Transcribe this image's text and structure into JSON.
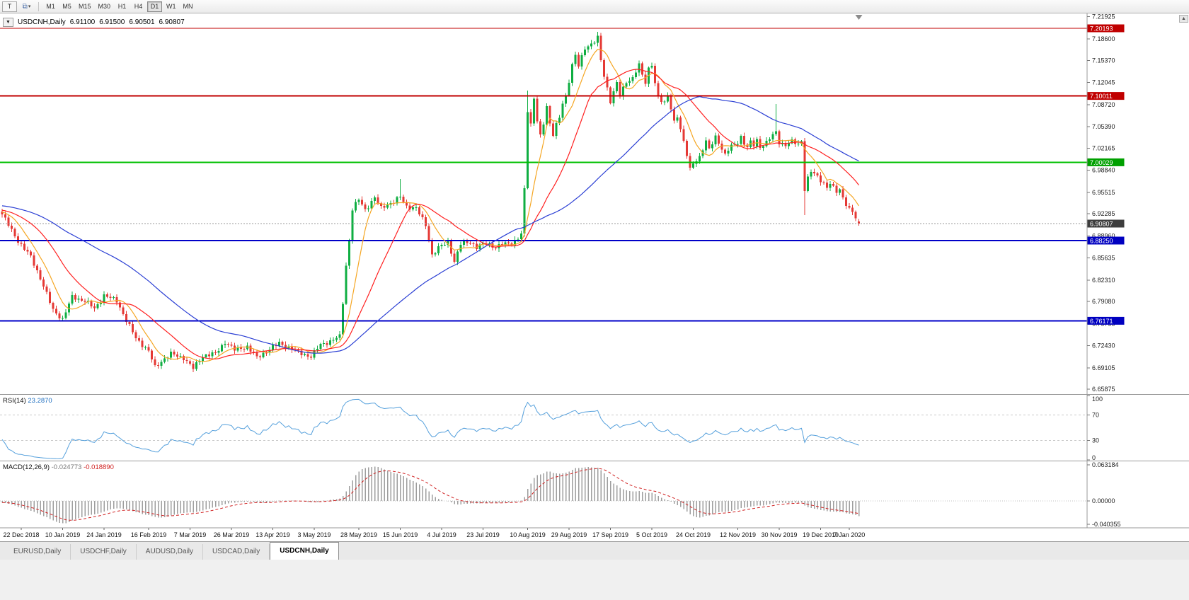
{
  "icons": {
    "collapse": "▼",
    "objects": "⧉",
    "caret": "▾",
    "scroll_up": "▲"
  },
  "toolbar": {
    "t_button_label": "T",
    "timeframes": [
      "M1",
      "M5",
      "M15",
      "M30",
      "H1",
      "H4",
      "D1",
      "W1",
      "MN"
    ],
    "active_timeframe": "D1"
  },
  "chart_header": {
    "symbol": "USDCNH,Daily",
    "open": "6.91100",
    "high": "6.91500",
    "low": "6.90501",
    "close": "6.90807"
  },
  "tabs": {
    "items": [
      "EURUSD,Daily",
      "USDCHF,Daily",
      "AUDUSD,Daily",
      "USDCAD,Daily",
      "USDCNH,Daily"
    ],
    "active_index": 4
  },
  "chart_data": {
    "type": "candlestick",
    "symbol": "USDCNH",
    "timeframe": "Daily",
    "candle_count": 270,
    "ylim": [
      6.6525,
      7.2243
    ],
    "up_color": "#0fae42",
    "down_color": "#e53935",
    "price_ticks": [
      "7.21925",
      "7.18600",
      "7.15370",
      "7.12045",
      "7.08720",
      "7.05390",
      "7.02165",
      "6.98840",
      "6.95515",
      "6.92285",
      "6.88960",
      "6.85635",
      "6.82310",
      "6.79080",
      "6.75755",
      "6.72430",
      "6.69105",
      "6.65875"
    ],
    "badges": [
      {
        "text": "7.20193",
        "bg": "#c00000",
        "name": "resistance-price-tag"
      },
      {
        "text": "7.10011",
        "bg": "#c00000",
        "name": "resistance-price-tag"
      },
      {
        "text": "7.00029",
        "bg": "#00a000",
        "name": "pivot-price-tag"
      },
      {
        "text": "6.90807",
        "bg": "#3d3d3d",
        "name": "current-price-tag"
      },
      {
        "text": "6.88250",
        "bg": "#0000c0",
        "name": "support-price-tag"
      },
      {
        "text": "6.76171",
        "bg": "#0000c0",
        "name": "support-price-tag"
      }
    ],
    "levels": [
      {
        "price": 7.20193,
        "color": "#c00000",
        "width": 1
      },
      {
        "price": 7.10011,
        "color": "#c00000",
        "width": 2
      },
      {
        "price": 7.00029,
        "color": "#00c000",
        "width": 2
      },
      {
        "price": 6.8825,
        "color": "#0000c8",
        "width": 2
      },
      {
        "price": 6.76171,
        "color": "#0000c8",
        "width": 2
      }
    ],
    "current_price": 6.90807,
    "moving_averages": [
      {
        "period": 8,
        "color": "#f5a623",
        "name": "fast-ma"
      },
      {
        "period": 21,
        "color": "#ff2020",
        "name": "medium-ma"
      },
      {
        "period": 55,
        "color": "#2b3fd4",
        "name": "slow-ma"
      }
    ],
    "price_path": [
      [
        0,
        6.922
      ],
      [
        2,
        6.906
      ],
      [
        5,
        6.882
      ],
      [
        9,
        6.858
      ],
      [
        12,
        6.826
      ],
      [
        16,
        6.778
      ],
      [
        19,
        6.764
      ],
      [
        22,
        6.798
      ],
      [
        26,
        6.792
      ],
      [
        29,
        6.78
      ],
      [
        32,
        6.8
      ],
      [
        36,
        6.792
      ],
      [
        39,
        6.762
      ],
      [
        42,
        6.736
      ],
      [
        46,
        6.716
      ],
      [
        48,
        6.692
      ],
      [
        50,
        6.701
      ],
      [
        53,
        6.712
      ],
      [
        57,
        6.706
      ],
      [
        60,
        6.69
      ],
      [
        63,
        6.709
      ],
      [
        67,
        6.712
      ],
      [
        70,
        6.73
      ],
      [
        73,
        6.718
      ],
      [
        77,
        6.723
      ],
      [
        80,
        6.706
      ],
      [
        83,
        6.716
      ],
      [
        87,
        6.728
      ],
      [
        90,
        6.722
      ],
      [
        93,
        6.714
      ],
      [
        97,
        6.708
      ],
      [
        100,
        6.726
      ],
      [
        103,
        6.731
      ],
      [
        106,
        6.738
      ],
      [
        107,
        6.79
      ],
      [
        108,
        6.845
      ],
      [
        109,
        6.882
      ],
      [
        110,
        6.93
      ],
      [
        112,
        6.944
      ],
      [
        114,
        6.929
      ],
      [
        117,
        6.947
      ],
      [
        119,
        6.931
      ],
      [
        121,
        6.937
      ],
      [
        123,
        6.941
      ],
      [
        125,
        6.948
      ],
      [
        127,
        6.934
      ],
      [
        130,
        6.931
      ],
      [
        133,
        6.906
      ],
      [
        135,
        6.861
      ],
      [
        137,
        6.871
      ],
      [
        140,
        6.881
      ],
      [
        142,
        6.851
      ],
      [
        144,
        6.877
      ],
      [
        147,
        6.881
      ],
      [
        149,
        6.872
      ],
      [
        152,
        6.879
      ],
      [
        155,
        6.872
      ],
      [
        157,
        6.877
      ],
      [
        160,
        6.879
      ],
      [
        162,
        6.886
      ],
      [
        163,
        6.892
      ],
      [
        164,
        6.958
      ],
      [
        165,
        7.078
      ],
      [
        166,
        7.058
      ],
      [
        167,
        7.098
      ],
      [
        168,
        7.064
      ],
      [
        169,
        7.039
      ],
      [
        170,
        7.058
      ],
      [
        171,
        7.083
      ],
      [
        172,
        7.058
      ],
      [
        173,
        7.044
      ],
      [
        174,
        7.058
      ],
      [
        175,
        7.068
      ],
      [
        176,
        7.088
      ],
      [
        177,
        7.098
      ],
      [
        178,
        7.122
      ],
      [
        179,
        7.148
      ],
      [
        180,
        7.163
      ],
      [
        181,
        7.147
      ],
      [
        182,
        7.158
      ],
      [
        183,
        7.17
      ],
      [
        185,
        7.178
      ],
      [
        187,
        7.19
      ],
      [
        188,
        7.154
      ],
      [
        189,
        7.129
      ],
      [
        190,
        7.109
      ],
      [
        191,
        7.091
      ],
      [
        192,
        7.108
      ],
      [
        193,
        7.121
      ],
      [
        194,
        7.102
      ],
      [
        195,
        7.111
      ],
      [
        196,
        7.119
      ],
      [
        198,
        7.127
      ],
      [
        199,
        7.139
      ],
      [
        200,
        7.149
      ],
      [
        201,
        7.131
      ],
      [
        202,
        7.119
      ],
      [
        203,
        7.139
      ],
      [
        204,
        7.147
      ],
      [
        205,
        7.121
      ],
      [
        206,
        7.099
      ],
      [
        208,
        7.089
      ],
      [
        209,
        7.099
      ],
      [
        210,
        7.081
      ],
      [
        211,
        7.061
      ],
      [
        212,
        7.071
      ],
      [
        213,
        7.051
      ],
      [
        214,
        7.031
      ],
      [
        215,
        7.011
      ],
      [
        216,
        6.989
      ],
      [
        217,
        6.999
      ],
      [
        219,
        7.009
      ],
      [
        220,
        7.021
      ],
      [
        221,
        7.031
      ],
      [
        222,
        7.019
      ],
      [
        223,
        7.029
      ],
      [
        224,
        7.039
      ],
      [
        225,
        7.031
      ],
      [
        226,
        7.021
      ],
      [
        227,
        7.011
      ],
      [
        228,
        7.019
      ],
      [
        229,
        7.024
      ],
      [
        231,
        7.031
      ],
      [
        232,
        7.039
      ],
      [
        233,
        7.029
      ],
      [
        234,
        7.022
      ],
      [
        235,
        7.03
      ],
      [
        236,
        7.026
      ],
      [
        237,
        7.034
      ],
      [
        238,
        7.024
      ],
      [
        240,
        7.03
      ],
      [
        243,
        7.046
      ],
      [
        244,
        7.031
      ],
      [
        246,
        7.026
      ],
      [
        248,
        7.031
      ],
      [
        250,
        7.028
      ],
      [
        251,
        7.033
      ],
      [
        252,
        6.96
      ],
      [
        253,
        6.976
      ],
      [
        254,
        6.986
      ],
      [
        256,
        6.979
      ],
      [
        257,
        6.974
      ],
      [
        258,
        6.969
      ],
      [
        259,
        6.962
      ],
      [
        260,
        6.968
      ],
      [
        261,
        6.961
      ],
      [
        262,
        6.956
      ],
      [
        263,
        6.96
      ],
      [
        264,
        6.948
      ],
      [
        265,
        6.938
      ],
      [
        266,
        6.929
      ],
      [
        267,
        6.925
      ],
      [
        268,
        6.916
      ],
      [
        269,
        6.908
      ]
    ],
    "overrides": [
      {
        "i": 125,
        "h": 6.975
      },
      {
        "i": 165,
        "h": 7.108
      },
      {
        "i": 187,
        "h": 7.1964
      },
      {
        "i": 243,
        "h": 7.088
      },
      {
        "i": 252,
        "l": 6.921
      },
      {
        "i": 269,
        "o": 6.911,
        "h": 6.915,
        "l": 6.90501,
        "c": 6.90807
      }
    ],
    "date_ticks": [
      {
        "label": "22 Dec 2018",
        "i": 6
      },
      {
        "label": "10 Jan 2019",
        "i": 19
      },
      {
        "label": "24 Jan 2019",
        "i": 32
      },
      {
        "label": "16 Feb 2019",
        "i": 46
      },
      {
        "label": "7 Mar 2019",
        "i": 59
      },
      {
        "label": "26 Mar 2019",
        "i": 72
      },
      {
        "label": "13 Apr 2019",
        "i": 85
      },
      {
        "label": "3 May 2019",
        "i": 98
      },
      {
        "label": "28 May 2019",
        "i": 112
      },
      {
        "label": "15 Jun 2019",
        "i": 125
      },
      {
        "label": "4 Jul 2019",
        "i": 138
      },
      {
        "label": "23 Jul 2019",
        "i": 151
      },
      {
        "label": "10 Aug 2019",
        "i": 165
      },
      {
        "label": "29 Aug 2019",
        "i": 178
      },
      {
        "label": "17 Sep 2019",
        "i": 191
      },
      {
        "label": "5 Oct 2019",
        "i": 204
      },
      {
        "label": "24 Oct 2019",
        "i": 217
      },
      {
        "label": "12 Nov 2019",
        "i": 231
      },
      {
        "label": "30 Nov 2019",
        "i": 244
      },
      {
        "label": "19 Dec 2019",
        "i": 257
      },
      {
        "label": "7 Jan 2020",
        "i": 266
      }
    ],
    "indicators": {
      "rsi": {
        "label": "RSI(14)",
        "value": "23.2870",
        "period": 14,
        "levels": [
          "100",
          "70",
          "30",
          "0"
        ],
        "dashed_levels": [
          70,
          30
        ],
        "color": "#55a0dc"
      },
      "macd": {
        "label": "MACD(12,26,9)",
        "main_value": "-0.024773",
        "signal_value": "-0.018890",
        "axis_labels": [
          "0.063184",
          "0.00000",
          "-0.040355"
        ],
        "ylim": [
          -0.0455,
          0.068
        ],
        "hist_color": "#9e9e9e",
        "signal_color": "#d02020"
      }
    }
  }
}
